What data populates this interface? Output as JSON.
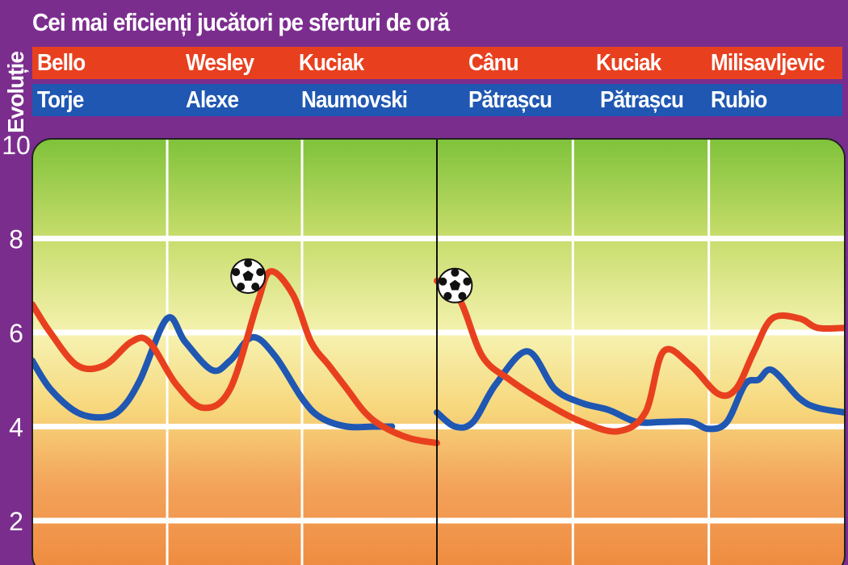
{
  "title": "Cei mai eficienți jucători pe sferturi de oră",
  "side_label": "Evoluție",
  "top_players": [
    "Bello",
    "Wesley",
    "Kuciak",
    "Cânu",
    "Kuciak",
    "Milisavljevic"
  ],
  "bottom_players": [
    "Torje",
    "Alexe",
    "Naumovski",
    "Pătrașcu",
    "Pătrașcu",
    "Rubio"
  ],
  "colors": {
    "frame": "#7b2d8e",
    "red_band": "#e8401f",
    "blue_band": "#1f57b2",
    "red_line": "#e8401f",
    "blue_line": "#1f57b2"
  },
  "chart_data": {
    "type": "line",
    "title": "Cei mai eficienți jucători pe sferturi de oră",
    "ylabel": "Evoluție",
    "ylim": [
      1.2,
      10.5
    ],
    "yticks": [
      "10",
      "8",
      "6",
      "4",
      "2"
    ],
    "halves": [
      {
        "x_range": [
          0,
          45
        ],
        "series": [
          {
            "color": "#e8401f",
            "x": [
              0,
              2,
              5,
              8,
              11,
              13,
              16,
              19,
              22,
              25,
              26.5,
              29,
              31,
              33,
              35,
              37,
              39,
              42,
              45
            ],
            "y": [
              6.6,
              6.0,
              5.3,
              5.3,
              5.8,
              5.8,
              4.9,
              4.4,
              4.8,
              6.6,
              7.3,
              6.8,
              5.8,
              5.3,
              4.8,
              4.3,
              4.0,
              3.75,
              3.65
            ]
          },
          {
            "color": "#1f57b2",
            "x": [
              0,
              2,
              5,
              8,
              10,
              12,
              15,
              17,
              20,
              22,
              24.5,
              27,
              30,
              32,
              35,
              38,
              40
            ],
            "y": [
              5.4,
              4.8,
              4.3,
              4.2,
              4.4,
              5.0,
              6.3,
              5.8,
              5.2,
              5.4,
              5.9,
              5.5,
              4.6,
              4.2,
              4.0,
              4.0,
              4.0
            ]
          }
        ]
      },
      {
        "x_range": [
          45,
          90
        ],
        "series": [
          {
            "color": "#e8401f",
            "x": [
              45,
              47.5,
              50,
              53,
              57,
              61,
              65,
              68,
              70,
              73,
              76,
              78,
              80,
              82,
              85,
              87,
              90
            ],
            "y": [
              7.1,
              6.7,
              5.5,
              5.0,
              4.5,
              4.1,
              3.9,
              4.3,
              5.6,
              5.3,
              4.7,
              4.8,
              5.6,
              6.3,
              6.3,
              6.1,
              6.1
            ]
          },
          {
            "color": "#1f57b2",
            "x": [
              45,
              47,
              49,
              51.5,
              55,
              58,
              61,
              64,
              67,
              70,
              73,
              75,
              77,
              79,
              80.5,
              82,
              85,
              87,
              90
            ],
            "y": [
              4.3,
              4.0,
              4.1,
              4.9,
              5.6,
              4.8,
              4.5,
              4.35,
              4.1,
              4.1,
              4.1,
              3.95,
              4.1,
              4.9,
              5.0,
              5.2,
              4.6,
              4.4,
              4.3
            ]
          }
        ]
      }
    ],
    "goals": [
      {
        "x": 24,
        "y": 7.2
      },
      {
        "x": 47,
        "y": 7.0
      }
    ]
  }
}
